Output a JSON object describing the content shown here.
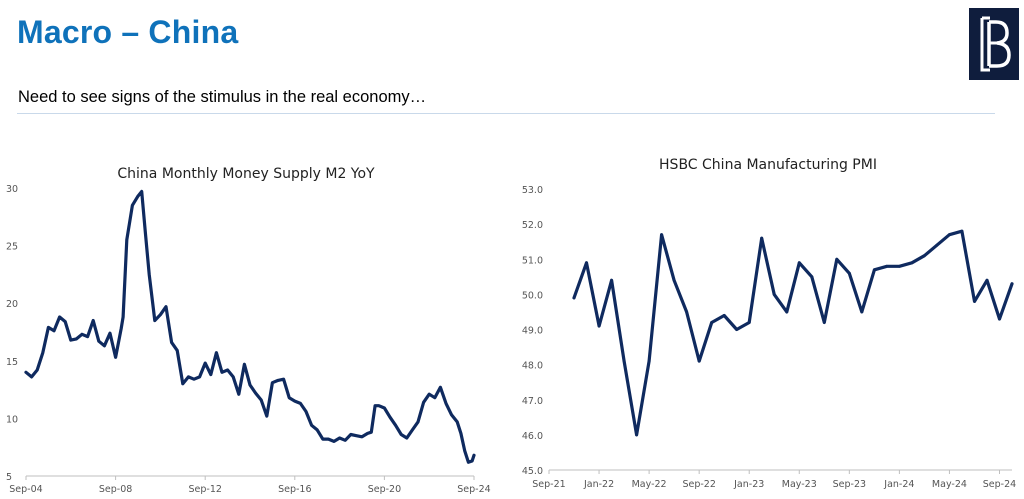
{
  "header": {
    "title": "Macro – China",
    "subtitle": "Need to see signs of the stimulus in the real economy…",
    "accent_color": "#0F72BA"
  },
  "logo": {
    "icon": "bracket-b-logo-icon",
    "background": "#0F1D3D"
  },
  "chart_data": [
    {
      "type": "line",
      "title": "China Monthly Money Supply M2 YoY",
      "xlabel": "",
      "ylabel": "",
      "x_ticks": [
        "Sep-04",
        "Sep-08",
        "Sep-12",
        "Sep-16",
        "Sep-20",
        "Sep-24"
      ],
      "y_ticks": [
        5,
        10,
        15,
        20,
        25,
        30
      ],
      "ylim": [
        5,
        30
      ],
      "xlim": [
        "Sep-04",
        "Sep-24"
      ],
      "grid": false,
      "line_color": "#0F2A5F",
      "series": [
        {
          "x": [
            "2004-09",
            "2004-12",
            "2005-03",
            "2005-06",
            "2005-09",
            "2005-12",
            "2006-03",
            "2006-06",
            "2006-09",
            "2006-12",
            "2007-03",
            "2007-06",
            "2007-09",
            "2007-12",
            "2008-03",
            "2008-06",
            "2008-09",
            "2008-12",
            "2009-01",
            "2009-03",
            "2009-06",
            "2009-09",
            "2009-11",
            "2010-01",
            "2010-03",
            "2010-06",
            "2010-09",
            "2010-12",
            "2011-03",
            "2011-06",
            "2011-09",
            "2011-12",
            "2012-03",
            "2012-06",
            "2012-09",
            "2012-12",
            "2013-03",
            "2013-06",
            "2013-09",
            "2013-12",
            "2014-03",
            "2014-06",
            "2014-09",
            "2014-12",
            "2015-03",
            "2015-06",
            "2015-09",
            "2015-12",
            "2016-03",
            "2016-06",
            "2016-09",
            "2016-12",
            "2017-03",
            "2017-06",
            "2017-09",
            "2017-12",
            "2018-03",
            "2018-06",
            "2018-09",
            "2018-12",
            "2019-03",
            "2019-06",
            "2019-09",
            "2019-12",
            "2020-02",
            "2020-04",
            "2020-06",
            "2020-09",
            "2020-12",
            "2021-03",
            "2021-06",
            "2021-09",
            "2021-12",
            "2022-03",
            "2022-06",
            "2022-09",
            "2022-12",
            "2023-03",
            "2023-06",
            "2023-09",
            "2023-12",
            "2024-02",
            "2024-04",
            "2024-06",
            "2024-08",
            "2024-09"
          ],
          "values": [
            14,
            13.6,
            14.2,
            15.7,
            17.9,
            17.6,
            18.8,
            18.4,
            16.8,
            16.9,
            17.3,
            17.1,
            18.5,
            16.7,
            16.3,
            17.4,
            15.3,
            17.8,
            18.8,
            25.5,
            28.5,
            29.3,
            29.7,
            26.0,
            22.5,
            18.5,
            19.0,
            19.7,
            16.6,
            15.9,
            13.0,
            13.6,
            13.4,
            13.6,
            14.8,
            13.8,
            15.7,
            14.0,
            14.2,
            13.6,
            12.1,
            14.7,
            12.9,
            12.2,
            11.6,
            10.2,
            13.1,
            13.3,
            13.4,
            11.8,
            11.5,
            11.3,
            10.6,
            9.4,
            9.0,
            8.2,
            8.2,
            8.0,
            8.3,
            8.1,
            8.6,
            8.5,
            8.4,
            8.7,
            8.8,
            11.1,
            11.1,
            10.9,
            10.1,
            9.4,
            8.6,
            8.3,
            9.0,
            9.7,
            11.4,
            12.1,
            11.8,
            12.7,
            11.3,
            10.3,
            9.7,
            8.7,
            7.2,
            6.2,
            6.3,
            6.8
          ]
        }
      ]
    },
    {
      "type": "line",
      "title": "HSBC China Manufacturing PMI",
      "xlabel": "",
      "ylabel": "",
      "x_ticks": [
        "Sep-21",
        "Jan-22",
        "May-22",
        "Sep-22",
        "Jan-23",
        "May-23",
        "Sep-23",
        "Jan-24",
        "May-24",
        "Sep-24"
      ],
      "y_ticks": [
        45.0,
        46.0,
        47.0,
        48.0,
        49.0,
        50.0,
        51.0,
        52.0,
        53.0
      ],
      "ylim": [
        45.0,
        53.0
      ],
      "xlim": [
        "Sep-21",
        "Oct-24"
      ],
      "grid": false,
      "line_color": "#0F2A5F",
      "series": [
        {
          "x": [
            "Nov-21",
            "Dec-21",
            "Jan-22",
            "Feb-22",
            "Mar-22",
            "Apr-22",
            "May-22",
            "Jun-22",
            "Jul-22",
            "Aug-22",
            "Sep-22",
            "Oct-22",
            "Nov-22",
            "Dec-22",
            "Jan-23",
            "Feb-23",
            "Mar-23",
            "Apr-23",
            "May-23",
            "Jun-23",
            "Jul-23",
            "Aug-23",
            "Sep-23",
            "Oct-23",
            "Nov-23",
            "Dec-23",
            "Jan-24",
            "Feb-24",
            "Mar-24",
            "Apr-24",
            "May-24",
            "Jun-24",
            "Jul-24",
            "Aug-24",
            "Sep-24",
            "Oct-24"
          ],
          "values": [
            49.9,
            50.9,
            49.1,
            50.4,
            48.1,
            46.0,
            48.1,
            51.7,
            50.4,
            49.5,
            48.1,
            49.2,
            49.4,
            49.0,
            49.2,
            51.6,
            50.0,
            49.5,
            50.9,
            50.5,
            49.2,
            51.0,
            50.6,
            49.5,
            50.7,
            50.8,
            50.8,
            50.9,
            51.1,
            51.4,
            51.7,
            51.8,
            49.8,
            50.4,
            49.3,
            50.3
          ]
        }
      ]
    }
  ]
}
